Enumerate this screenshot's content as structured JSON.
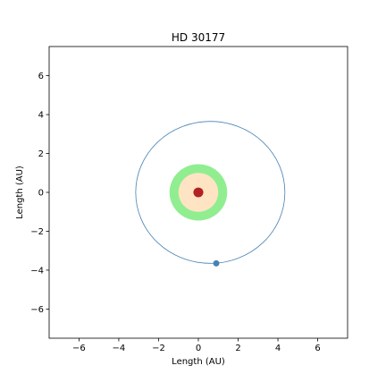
{
  "chart_data": {
    "type": "scatter",
    "title": "HD 30177",
    "xlabel": "Length (AU)",
    "ylabel": "Length (AU)",
    "xlim": [
      -7.5,
      7.5
    ],
    "ylim": [
      -7.5,
      7.5
    ],
    "xticks": [
      -6,
      -4,
      -2,
      0,
      2,
      4,
      6
    ],
    "yticks": [
      -6,
      -4,
      -2,
      0,
      2,
      4,
      6
    ],
    "tick_labels_x": [
      "−6",
      "−4",
      "−2",
      "0",
      "2",
      "4",
      "6"
    ],
    "tick_labels_y": [
      "−6",
      "−4",
      "−2",
      "0",
      "2",
      "4",
      "6"
    ],
    "grid": false,
    "habitable_zone": {
      "center": [
        0,
        0
      ],
      "outer_radius": 1.45,
      "color": "#90ee90"
    },
    "inner_zone": {
      "center": [
        0,
        0
      ],
      "radius": 1.0,
      "color": "#ffe4c4"
    },
    "star": {
      "x": 0,
      "y": 0,
      "radius": 0.25,
      "color": "#b22222"
    },
    "orbit": {
      "center": [
        0.6,
        0
      ],
      "semi_major_axis": 3.75,
      "semi_minor_axis": 3.65,
      "color": "#4682b4"
    },
    "planet": {
      "x": 0.9,
      "y": -3.65,
      "color": "#4682b4"
    }
  }
}
